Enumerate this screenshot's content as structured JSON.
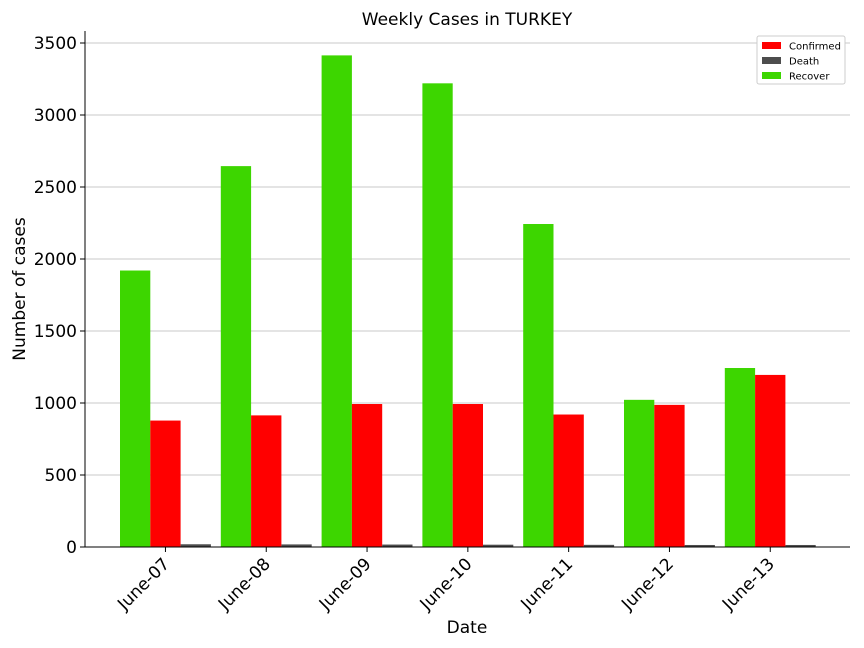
{
  "chart_data": {
    "type": "bar",
    "title": "Weekly Cases in TURKEY",
    "xlabel": "Date",
    "ylabel": "Number of cases",
    "categories": [
      "June-07",
      "June-08",
      "June-09",
      "June-10",
      "June-11",
      "June-12",
      "June-13"
    ],
    "series": [
      {
        "name": "Recover",
        "color": "#3dd600",
        "values": [
          1920,
          2645,
          3414,
          3220,
          2243,
          1022,
          1243
        ]
      },
      {
        "name": "Confirmed",
        "color": "#ff0000",
        "values": [
          878,
          914,
          993,
          993,
          920,
          987,
          1195
        ]
      },
      {
        "name": "Death",
        "color": "#4d4d4d",
        "values": [
          19,
          18,
          17,
          16,
          15,
          14,
          14
        ]
      }
    ],
    "legend_order": [
      "Confirmed",
      "Death",
      "Recover"
    ],
    "legend_position": "top-right",
    "ylim": [
      0,
      3580
    ],
    "yticks": [
      0,
      500,
      1000,
      1500,
      2000,
      2500,
      3000,
      3500
    ],
    "grid": "horizontal"
  }
}
